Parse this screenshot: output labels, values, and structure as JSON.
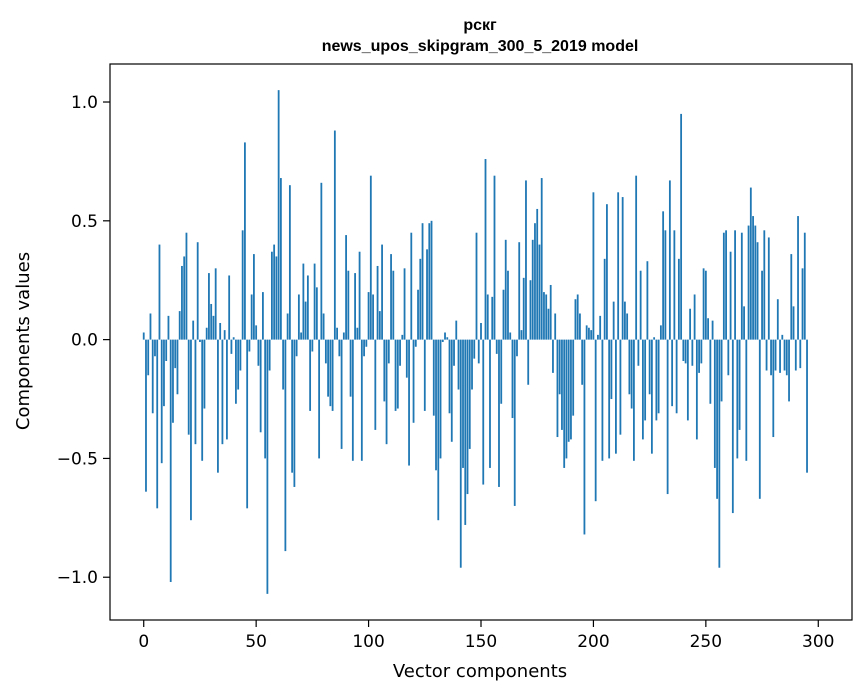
{
  "chart_data": {
    "type": "bar",
    "title_line1": "рскг",
    "title_line2": "news_upos_skipgram_300_5_2019 model",
    "xlabel": "Vector components",
    "ylabel": "Components values",
    "xlim": [
      -15,
      315
    ],
    "ylim": [
      -1.18,
      1.16
    ],
    "xticks": [
      0,
      50,
      100,
      150,
      200,
      250,
      300
    ],
    "xtick_labels": [
      "0",
      "50",
      "100",
      "150",
      "200",
      "250",
      "300"
    ],
    "yticks": [
      -1.0,
      -0.5,
      0.0,
      0.5,
      1.0
    ],
    "ytick_labels": [
      "−1.0",
      "−0.5",
      "0.0",
      "0.5",
      "1.0"
    ],
    "grid": false,
    "bar_color": "#1f77b4",
    "values": [
      0.03,
      -0.64,
      -0.15,
      0.11,
      -0.31,
      -0.07,
      -0.71,
      0.4,
      -0.52,
      -0.28,
      -0.09,
      0.1,
      -1.02,
      -0.35,
      -0.12,
      -0.23,
      0.12,
      0.31,
      0.35,
      0.45,
      -0.4,
      -0.76,
      0.08,
      -0.44,
      0.41,
      -0.01,
      -0.51,
      -0.29,
      0.05,
      0.28,
      0.15,
      0.1,
      0.3,
      -0.56,
      0.07,
      -0.44,
      0.04,
      -0.42,
      0.27,
      -0.06,
      0.01,
      -0.27,
      -0.21,
      -0.13,
      0.46,
      0.83,
      -0.71,
      -0.05,
      0.19,
      0.36,
      0.06,
      -0.11,
      -0.39,
      0.2,
      -0.5,
      -1.07,
      -0.13,
      0.37,
      0.4,
      0.35,
      1.05,
      0.68,
      -0.21,
      -0.89,
      0.11,
      0.65,
      -0.56,
      -0.62,
      -0.07,
      0.19,
      0.03,
      0.32,
      0.16,
      0.27,
      -0.3,
      -0.05,
      0.32,
      0.22,
      -0.5,
      0.66,
      0.11,
      -0.1,
      -0.24,
      -0.28,
      -0.3,
      0.88,
      0.05,
      -0.07,
      -0.46,
      0.03,
      0.44,
      0.29,
      -0.24,
      -0.51,
      0.28,
      0.05,
      0.37,
      -0.51,
      -0.07,
      -0.03,
      0.2,
      0.69,
      0.19,
      -0.38,
      0.31,
      0.12,
      0.4,
      -0.26,
      -0.44,
      -0.1,
      0.36,
      0.29,
      -0.3,
      -0.29,
      -0.11,
      0.02,
      0.3,
      -0.16,
      -0.53,
      0.45,
      -0.35,
      -0.03,
      0.21,
      0.34,
      0.49,
      -0.3,
      0.38,
      0.49,
      0.5,
      -0.32,
      -0.55,
      -0.76,
      -0.5,
      -0.01,
      0.03,
      0.01,
      -0.31,
      -0.43,
      -0.11,
      0.08,
      -0.21,
      -0.96,
      -0.54,
      -0.78,
      -0.65,
      -0.46,
      -0.21,
      -0.08,
      0.45,
      -0.1,
      0.07,
      -0.61,
      0.76,
      0.19,
      -0.54,
      0.18,
      0.69,
      -0.06,
      -0.62,
      -0.27,
      0.21,
      0.42,
      0.29,
      0.03,
      -0.33,
      -0.7,
      -0.07,
      0.41,
      0.04,
      0.26,
      0.67,
      -0.19,
      0.25,
      0.42,
      0.49,
      0.55,
      0.4,
      0.68,
      0.2,
      0.19,
      0.13,
      0.23,
      -0.14,
      0.11,
      -0.41,
      -0.23,
      -0.38,
      -0.54,
      -0.5,
      -0.43,
      -0.42,
      -0.32,
      0.17,
      0.19,
      0.11,
      -0.19,
      -0.82,
      0.06,
      0.05,
      0.04,
      0.62,
      -0.68,
      0.02,
      0.1,
      -0.51,
      0.34,
      0.57,
      -0.5,
      -0.25,
      0.16,
      -0.48,
      0.62,
      -0.4,
      0.6,
      0.16,
      0.11,
      -0.23,
      -0.29,
      -0.51,
      0.69,
      -0.11,
      0.29,
      -0.42,
      -0.34,
      0.33,
      -0.23,
      -0.48,
      0.01,
      -0.34,
      -0.31,
      0.06,
      0.54,
      0.46,
      -0.65,
      0.67,
      -0.28,
      0.46,
      -0.31,
      0.34,
      0.95,
      -0.09,
      -0.1,
      -0.34,
      0.13,
      -0.11,
      0.19,
      -0.42,
      -0.14,
      -0.1,
      0.3,
      0.29,
      0.09,
      -0.27,
      0.08,
      -0.54,
      -0.67,
      -0.96,
      -0.26,
      0.45,
      0.46,
      -0.15,
      0.37,
      -0.73,
      0.46,
      -0.5,
      -0.38,
      0.45,
      0.14,
      -0.51,
      0.48,
      0.64,
      0.52,
      0.48,
      0.41,
      -0.67,
      0.29,
      0.46,
      -0.13,
      0.43,
      -0.15,
      -0.41,
      -0.13,
      0.17,
      -0.14,
      0.02,
      -0.13,
      -0.15,
      -0.26,
      0.36,
      0.14,
      -0.13,
      0.52,
      -0.12,
      0.3,
      0.45,
      -0.56
    ]
  }
}
